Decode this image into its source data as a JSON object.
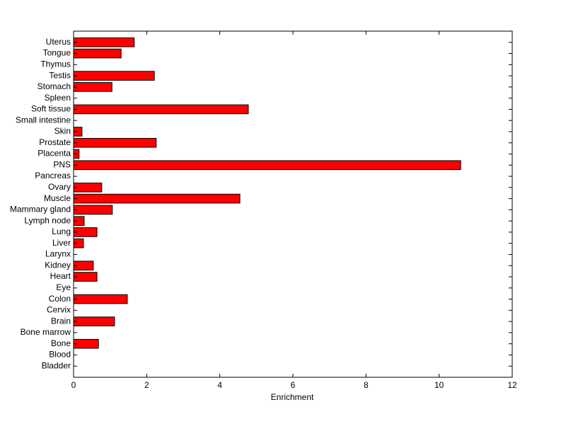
{
  "chart_data": {
    "type": "barh",
    "xlabel": "Enrichment",
    "categories": [
      "Bladder",
      "Blood",
      "Bone",
      "Bone marrow",
      "Brain",
      "Cervix",
      "Colon",
      "Eye",
      "Heart",
      "Kidney",
      "Larynx",
      "Liver",
      "Lung",
      "Lymph node",
      "Mammary gland",
      "Muscle",
      "Ovary",
      "Pancreas",
      "PNS",
      "Placenta",
      "Prostate",
      "Skin",
      "Small intestine",
      "Soft tissue",
      "Spleen",
      "Stomach",
      "Testis",
      "Thymus",
      "Tongue",
      "Uterus"
    ],
    "values": [
      0,
      0,
      0.68,
      0,
      1.12,
      0,
      1.47,
      0,
      0.64,
      0.54,
      0,
      0.27,
      0.64,
      0.29,
      1.06,
      4.55,
      0.77,
      0,
      10.59,
      0.15,
      2.26,
      0.23,
      0,
      4.78,
      0,
      1.05,
      2.21,
      0,
      1.3,
      1.66
    ],
    "color": "#ff0000",
    "xlim": [
      0,
      12
    ],
    "xticks": [
      0,
      2,
      4,
      6,
      8,
      10,
      12
    ]
  }
}
